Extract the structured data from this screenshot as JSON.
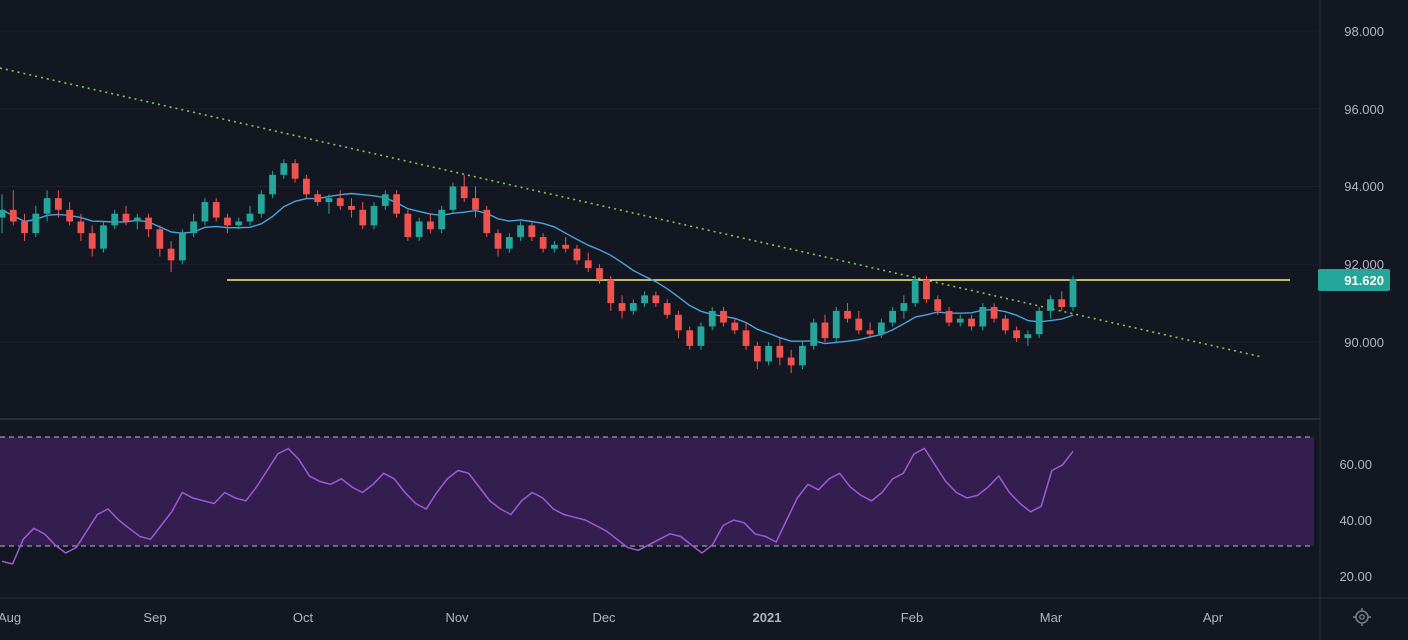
{
  "chart_data": [
    {
      "type": "candlestick",
      "panel": "price",
      "ylim": [
        88.0,
        99.0
      ],
      "y_ticks": [
        "98.000",
        "96.000",
        "94.000",
        "92.000",
        "90.000"
      ],
      "x_labels": [
        "Aug",
        "Sep",
        "Oct",
        "Nov",
        "Dec",
        "2021",
        "Feb",
        "Mar",
        "Apr"
      ],
      "last_price_label": "91.620",
      "last_price": 91.62,
      "candles": [
        {
          "o": 93.2,
          "h": 93.8,
          "l": 92.8,
          "c": 93.4
        },
        {
          "o": 93.4,
          "h": 93.9,
          "l": 93.0,
          "c": 93.1
        },
        {
          "o": 93.1,
          "h": 93.3,
          "l": 92.6,
          "c": 92.8
        },
        {
          "o": 92.8,
          "h": 93.5,
          "l": 92.7,
          "c": 93.3
        },
        {
          "o": 93.3,
          "h": 93.9,
          "l": 93.1,
          "c": 93.7
        },
        {
          "o": 93.7,
          "h": 93.9,
          "l": 93.2,
          "c": 93.4
        },
        {
          "o": 93.4,
          "h": 93.6,
          "l": 93.0,
          "c": 93.1
        },
        {
          "o": 93.1,
          "h": 93.3,
          "l": 92.6,
          "c": 92.8
        },
        {
          "o": 92.8,
          "h": 93.0,
          "l": 92.2,
          "c": 92.4
        },
        {
          "o": 92.4,
          "h": 93.1,
          "l": 92.3,
          "c": 93.0
        },
        {
          "o": 93.0,
          "h": 93.4,
          "l": 92.9,
          "c": 93.3
        },
        {
          "o": 93.3,
          "h": 93.5,
          "l": 93.0,
          "c": 93.1
        },
        {
          "o": 93.1,
          "h": 93.3,
          "l": 92.9,
          "c": 93.2
        },
        {
          "o": 93.2,
          "h": 93.3,
          "l": 92.7,
          "c": 92.9
        },
        {
          "o": 92.9,
          "h": 93.0,
          "l": 92.2,
          "c": 92.4
        },
        {
          "o": 92.4,
          "h": 92.6,
          "l": 91.8,
          "c": 92.1
        },
        {
          "o": 92.1,
          "h": 92.9,
          "l": 92.0,
          "c": 92.8
        },
        {
          "o": 92.8,
          "h": 93.3,
          "l": 92.7,
          "c": 93.1
        },
        {
          "o": 93.1,
          "h": 93.7,
          "l": 93.0,
          "c": 93.6
        },
        {
          "o": 93.6,
          "h": 93.7,
          "l": 93.1,
          "c": 93.2
        },
        {
          "o": 93.2,
          "h": 93.3,
          "l": 92.8,
          "c": 93.0
        },
        {
          "o": 93.0,
          "h": 93.2,
          "l": 92.9,
          "c": 93.1
        },
        {
          "o": 93.1,
          "h": 93.5,
          "l": 93.0,
          "c": 93.3
        },
        {
          "o": 93.3,
          "h": 93.9,
          "l": 93.2,
          "c": 93.8
        },
        {
          "o": 93.8,
          "h": 94.4,
          "l": 93.7,
          "c": 94.3
        },
        {
          "o": 94.3,
          "h": 94.7,
          "l": 94.2,
          "c": 94.6
        },
        {
          "o": 94.6,
          "h": 94.7,
          "l": 94.1,
          "c": 94.2
        },
        {
          "o": 94.2,
          "h": 94.3,
          "l": 93.7,
          "c": 93.8
        },
        {
          "o": 93.8,
          "h": 93.9,
          "l": 93.5,
          "c": 93.6
        },
        {
          "o": 93.6,
          "h": 93.8,
          "l": 93.3,
          "c": 93.7
        },
        {
          "o": 93.7,
          "h": 93.9,
          "l": 93.4,
          "c": 93.5
        },
        {
          "o": 93.5,
          "h": 93.7,
          "l": 93.2,
          "c": 93.4
        },
        {
          "o": 93.4,
          "h": 93.6,
          "l": 92.9,
          "c": 93.0
        },
        {
          "o": 93.0,
          "h": 93.6,
          "l": 92.9,
          "c": 93.5
        },
        {
          "o": 93.5,
          "h": 93.9,
          "l": 93.4,
          "c": 93.8
        },
        {
          "o": 93.8,
          "h": 93.9,
          "l": 93.2,
          "c": 93.3
        },
        {
          "o": 93.3,
          "h": 93.4,
          "l": 92.6,
          "c": 92.7
        },
        {
          "o": 92.7,
          "h": 93.2,
          "l": 92.6,
          "c": 93.1
        },
        {
          "o": 93.1,
          "h": 93.3,
          "l": 92.8,
          "c": 92.9
        },
        {
          "o": 92.9,
          "h": 93.5,
          "l": 92.8,
          "c": 93.4
        },
        {
          "o": 93.4,
          "h": 94.1,
          "l": 93.3,
          "c": 94.0
        },
        {
          "o": 94.0,
          "h": 94.3,
          "l": 93.6,
          "c": 93.7
        },
        {
          "o": 93.7,
          "h": 94.0,
          "l": 93.2,
          "c": 93.4
        },
        {
          "o": 93.4,
          "h": 93.5,
          "l": 92.7,
          "c": 92.8
        },
        {
          "o": 92.8,
          "h": 92.9,
          "l": 92.2,
          "c": 92.4
        },
        {
          "o": 92.4,
          "h": 92.8,
          "l": 92.3,
          "c": 92.7
        },
        {
          "o": 92.7,
          "h": 93.1,
          "l": 92.6,
          "c": 93.0
        },
        {
          "o": 93.0,
          "h": 93.1,
          "l": 92.6,
          "c": 92.7
        },
        {
          "o": 92.7,
          "h": 92.8,
          "l": 92.3,
          "c": 92.4
        },
        {
          "o": 92.4,
          "h": 92.6,
          "l": 92.3,
          "c": 92.5
        },
        {
          "o": 92.5,
          "h": 92.7,
          "l": 92.3,
          "c": 92.4
        },
        {
          "o": 92.4,
          "h": 92.5,
          "l": 92.0,
          "c": 92.1
        },
        {
          "o": 92.1,
          "h": 92.3,
          "l": 91.8,
          "c": 91.9
        },
        {
          "o": 91.9,
          "h": 92.0,
          "l": 91.5,
          "c": 91.6
        },
        {
          "o": 91.6,
          "h": 91.7,
          "l": 90.8,
          "c": 91.0
        },
        {
          "o": 91.0,
          "h": 91.2,
          "l": 90.6,
          "c": 90.8
        },
        {
          "o": 90.8,
          "h": 91.1,
          "l": 90.7,
          "c": 91.0
        },
        {
          "o": 91.0,
          "h": 91.3,
          "l": 90.9,
          "c": 91.2
        },
        {
          "o": 91.2,
          "h": 91.3,
          "l": 90.9,
          "c": 91.0
        },
        {
          "o": 91.0,
          "h": 91.1,
          "l": 90.6,
          "c": 90.7
        },
        {
          "o": 90.7,
          "h": 90.8,
          "l": 90.1,
          "c": 90.3
        },
        {
          "o": 90.3,
          "h": 90.4,
          "l": 89.8,
          "c": 89.9
        },
        {
          "o": 89.9,
          "h": 90.5,
          "l": 89.8,
          "c": 90.4
        },
        {
          "o": 90.4,
          "h": 90.9,
          "l": 90.3,
          "c": 90.8
        },
        {
          "o": 90.8,
          "h": 90.9,
          "l": 90.4,
          "c": 90.5
        },
        {
          "o": 90.5,
          "h": 90.6,
          "l": 90.2,
          "c": 90.3
        },
        {
          "o": 90.3,
          "h": 90.5,
          "l": 89.8,
          "c": 89.9
        },
        {
          "o": 89.9,
          "h": 90.0,
          "l": 89.3,
          "c": 89.5
        },
        {
          "o": 89.5,
          "h": 90.0,
          "l": 89.4,
          "c": 89.9
        },
        {
          "o": 89.9,
          "h": 90.1,
          "l": 89.4,
          "c": 89.6
        },
        {
          "o": 89.6,
          "h": 89.8,
          "l": 89.2,
          "c": 89.4
        },
        {
          "o": 89.4,
          "h": 90.0,
          "l": 89.3,
          "c": 89.9
        },
        {
          "o": 89.9,
          "h": 90.6,
          "l": 89.8,
          "c": 90.5
        },
        {
          "o": 90.5,
          "h": 90.7,
          "l": 90.0,
          "c": 90.1
        },
        {
          "o": 90.1,
          "h": 90.9,
          "l": 90.0,
          "c": 90.8
        },
        {
          "o": 90.8,
          "h": 91.0,
          "l": 90.5,
          "c": 90.6
        },
        {
          "o": 90.6,
          "h": 90.8,
          "l": 90.2,
          "c": 90.3
        },
        {
          "o": 90.3,
          "h": 90.5,
          "l": 90.1,
          "c": 90.2
        },
        {
          "o": 90.2,
          "h": 90.6,
          "l": 90.1,
          "c": 90.5
        },
        {
          "o": 90.5,
          "h": 90.9,
          "l": 90.4,
          "c": 90.8
        },
        {
          "o": 90.8,
          "h": 91.2,
          "l": 90.6,
          "c": 91.0
        },
        {
          "o": 91.0,
          "h": 91.7,
          "l": 90.9,
          "c": 91.6
        },
        {
          "o": 91.6,
          "h": 91.7,
          "l": 91.0,
          "c": 91.1
        },
        {
          "o": 91.1,
          "h": 91.2,
          "l": 90.7,
          "c": 90.8
        },
        {
          "o": 90.8,
          "h": 90.9,
          "l": 90.4,
          "c": 90.5
        },
        {
          "o": 90.5,
          "h": 90.7,
          "l": 90.4,
          "c": 90.6
        },
        {
          "o": 90.6,
          "h": 90.7,
          "l": 90.3,
          "c": 90.4
        },
        {
          "o": 90.4,
          "h": 91.0,
          "l": 90.3,
          "c": 90.9
        },
        {
          "o": 90.9,
          "h": 91.0,
          "l": 90.5,
          "c": 90.6
        },
        {
          "o": 90.6,
          "h": 90.7,
          "l": 90.2,
          "c": 90.3
        },
        {
          "o": 90.3,
          "h": 90.4,
          "l": 90.0,
          "c": 90.1
        },
        {
          "o": 90.1,
          "h": 90.3,
          "l": 89.9,
          "c": 90.2
        },
        {
          "o": 90.2,
          "h": 90.9,
          "l": 90.1,
          "c": 90.8
        },
        {
          "o": 90.8,
          "h": 91.2,
          "l": 90.6,
          "c": 91.1
        },
        {
          "o": 91.1,
          "h": 91.3,
          "l": 90.8,
          "c": 90.9
        },
        {
          "o": 90.9,
          "h": 91.7,
          "l": 90.8,
          "c": 91.62
        }
      ]
    },
    {
      "type": "line",
      "panel": "rsi",
      "ylim": [
        15,
        75
      ],
      "y_ticks": [
        "60.00",
        "40.00",
        "20.00"
      ],
      "overbought": 70,
      "oversold": 30,
      "values": [
        25,
        24,
        33,
        37,
        35,
        31,
        28,
        30,
        36,
        42,
        44,
        40,
        37,
        34,
        33,
        38,
        43,
        50,
        48,
        47,
        46,
        50,
        48,
        47,
        52,
        58,
        64,
        66,
        62,
        56,
        54,
        53,
        55,
        52,
        50,
        53,
        57,
        55,
        50,
        46,
        44,
        50,
        55,
        58,
        57,
        52,
        47,
        44,
        42,
        47,
        50,
        48,
        44,
        42,
        41,
        40,
        38,
        36,
        33,
        30,
        29,
        31,
        33,
        35,
        34,
        31,
        28,
        31,
        38,
        40,
        39,
        35,
        34,
        32,
        40,
        48,
        53,
        51,
        55,
        57,
        52,
        49,
        47,
        50,
        55,
        57,
        64,
        66,
        60,
        54,
        50,
        48,
        49,
        52,
        56,
        50,
        46,
        43,
        45,
        58,
        60,
        65
      ]
    }
  ]
}
